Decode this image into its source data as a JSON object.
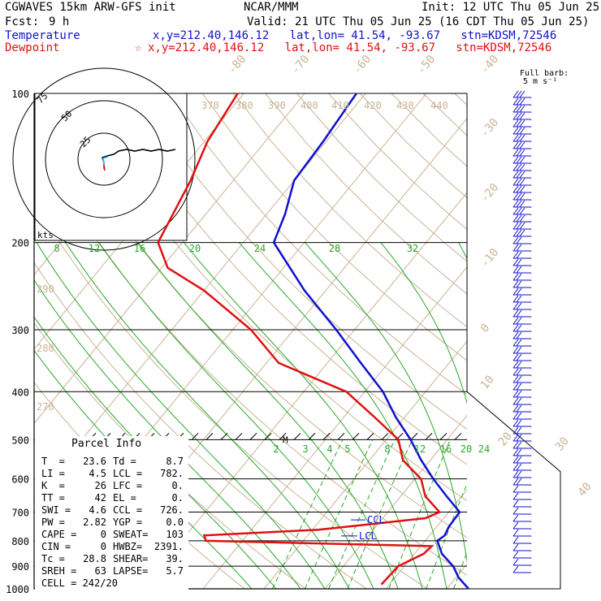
{
  "header": {
    "model": "CGWAVES 15km ARW-GFS init",
    "center": "NCAR/MMM",
    "init": "Init: 12 UTC Thu 05 Jun 25",
    "fcst_label": "Fcst:",
    "fcst_value": "9 h",
    "valid": "Valid: 21 UTC Thu 05 Jun 25 (16 CDT Thu 05 Jun 25)",
    "temp_label": "Temperature",
    "temp_info": "x,y=212.40,146.12   lat,lon= 41.54, -93.67   stn=KDSM,72546",
    "dew_label": "Dewpoint",
    "dew_info": "x,y=212.40,146.12   lat,lon= 41.54, -93.67   stn=KDSM,72546",
    "dew_marker": "☆"
  },
  "barb_key": {
    "line1": "Full barb:",
    "line2": "5 m s⁻¹"
  },
  "hodograph": {
    "units": "kts",
    "ring_labels": [
      "25",
      "50",
      "75"
    ]
  },
  "parcel_info": {
    "title": "Parcel Info",
    "rows": [
      [
        "T  =",
        "23.6",
        "Td =",
        "8.7"
      ],
      [
        "LI =",
        "4.5",
        "LCL =",
        "782."
      ],
      [
        "K  =",
        "26",
        "LFC =",
        "0."
      ],
      [
        "TT =",
        "42",
        "EL =",
        "0."
      ],
      [
        "SWI =",
        "4.6",
        "CCL =",
        "726."
      ],
      [
        "PW =",
        "2.82",
        "YGP =",
        "0.0"
      ],
      [
        "CAPE =",
        "0",
        "SWEAT=",
        "103"
      ],
      [
        "CIN =",
        "0",
        "HWBZ=",
        "2391."
      ],
      [
        "Tc =",
        "28.8",
        "SHEAR=",
        "39."
      ],
      [
        "SREH =",
        "63",
        "LAPSE=",
        "5.7"
      ]
    ],
    "cell": "CELL = 242/20"
  },
  "annotations": {
    "ccl": "CCL",
    "lcl": "LCL",
    "m": "M"
  },
  "chart_data": {
    "type": "line",
    "pressure_levels": [
      "100",
      "200",
      "300",
      "400",
      "500",
      "600",
      "700",
      "800",
      "900",
      "1000"
    ],
    "isotherm_labels": [
      "-80",
      "-70",
      "-60",
      "-50",
      "-40",
      "-30",
      "-20",
      "-10",
      "0",
      "10",
      "20",
      "30",
      "40"
    ],
    "theta_labels": [
      "370",
      "380",
      "390",
      "400",
      "410",
      "420",
      "430",
      "440",
      "290",
      "280",
      "270"
    ],
    "mixing_ratio_upper": [
      "8",
      "12",
      "16",
      "20",
      "24",
      "28",
      "32"
    ],
    "mixing_ratio_lower": [
      "2",
      "3",
      "4",
      "5",
      "8",
      "12",
      "16",
      "20",
      "24"
    ],
    "series": [
      {
        "name": "Temperature",
        "color": "#1010d0",
        "pressure": [
          1000,
          950,
          900,
          850,
          800,
          780,
          750,
          700,
          650,
          600,
          550,
          500,
          450,
          400,
          350,
          300,
          250,
          200,
          175,
          150,
          125,
          100
        ],
        "temp_c": [
          23.6,
          20.5,
          18.0,
          14.5,
          12.0,
          12.5,
          12.0,
          11.8,
          7.5,
          3.0,
          -1.5,
          -6.0,
          -11.5,
          -17.0,
          -24.5,
          -33.0,
          -43.5,
          -55.0,
          -57.0,
          -60.0,
          -60.5,
          -61.5
        ]
      },
      {
        "name": "Dewpoint",
        "color": "#e01010",
        "pressure": [
          980,
          900,
          850,
          820,
          800,
          780,
          760,
          740,
          720,
          700,
          650,
          600,
          550,
          500,
          450,
          400,
          350,
          300,
          250,
          225,
          200,
          150,
          125,
          100
        ],
        "dew_c": [
          8.7,
          9.0,
          11.5,
          11.8,
          -26.0,
          -27.0,
          -9.0,
          -1.0,
          7.0,
          8.5,
          4.0,
          1.0,
          -4.5,
          -8.0,
          -15.0,
          -23.0,
          -38.0,
          -47.0,
          -60.0,
          -69.0,
          -74.0,
          -77.0,
          -79.5,
          -81.0
        ]
      }
    ],
    "ylim": [
      1000,
      100
    ],
    "xlim": [
      -40,
      40
    ]
  }
}
